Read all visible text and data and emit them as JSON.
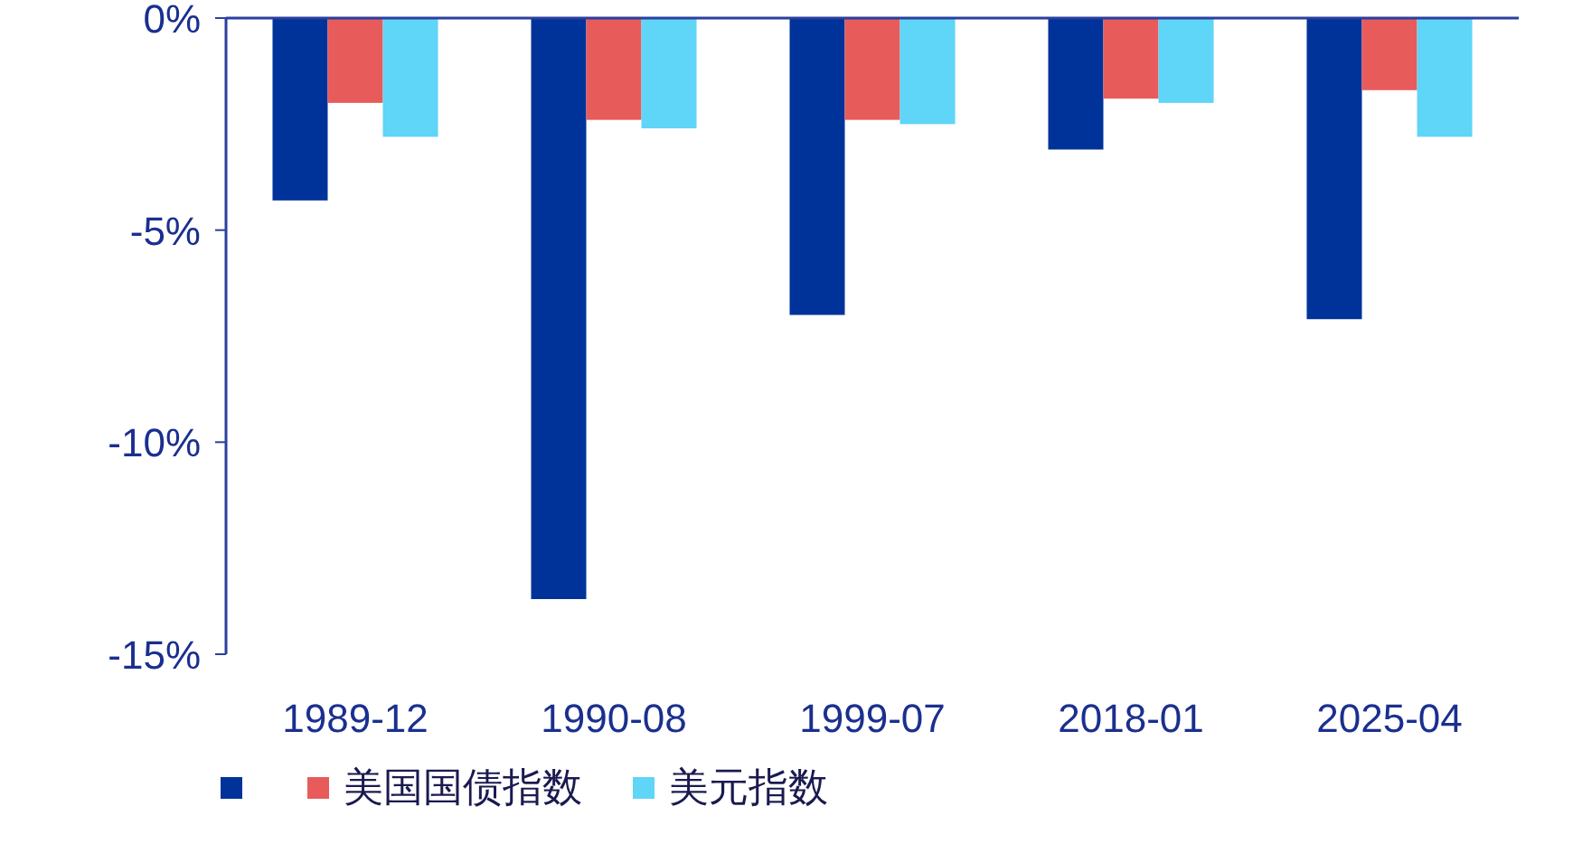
{
  "chart_data": {
    "type": "bar",
    "categories": [
      "1989-12",
      "1990-08",
      "1999-07",
      "2018-01",
      "2025-04"
    ],
    "series": [
      {
        "color": "#003399",
        "values": [
          -4.3,
          -13.7,
          -7.0,
          -3.1,
          -7.1
        ]
      },
      {
        "name": "美国国债指数",
        "color": "#e85b5b",
        "values": [
          -2.0,
          -2.4,
          -2.4,
          -1.9,
          -1.7
        ]
      },
      {
        "name": "美元指数",
        "color": "#5fd5f8",
        "values": [
          -2.8,
          -2.6,
          -2.5,
          -2.0,
          -2.8
        ]
      }
    ],
    "ylim": [
      -15,
      0
    ],
    "yticks": [
      {
        "value": 0,
        "label": "0%"
      },
      {
        "value": -5,
        "label": "-5%"
      },
      {
        "value": -10,
        "label": "-10%"
      },
      {
        "value": -15,
        "label": "-15%"
      }
    ],
    "grid": false,
    "legend": "bottom"
  }
}
